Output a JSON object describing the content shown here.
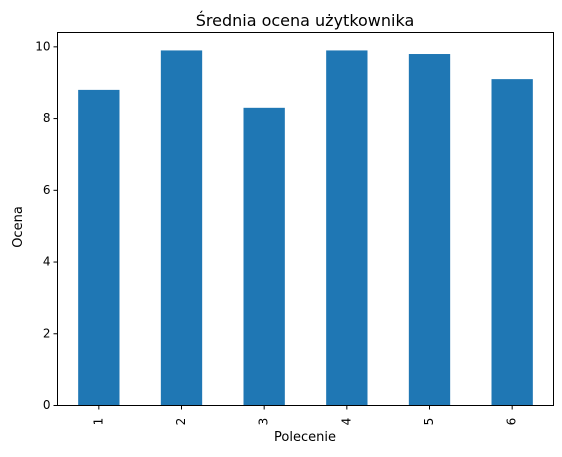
{
  "chart_data": {
    "type": "bar",
    "title": "Średnia ocena użytkownika",
    "xlabel": "Polecenie",
    "ylabel": "Ocena",
    "categories": [
      "1",
      "2",
      "3",
      "4",
      "5",
      "6"
    ],
    "values": [
      8.8,
      9.9,
      8.3,
      9.9,
      9.8,
      9.1
    ],
    "ylim": [
      0,
      10.4
    ],
    "yticks": [
      0,
      2,
      4,
      6,
      8,
      10
    ],
    "grid": false,
    "legend": "none",
    "bar_color": "#1f77b4"
  }
}
